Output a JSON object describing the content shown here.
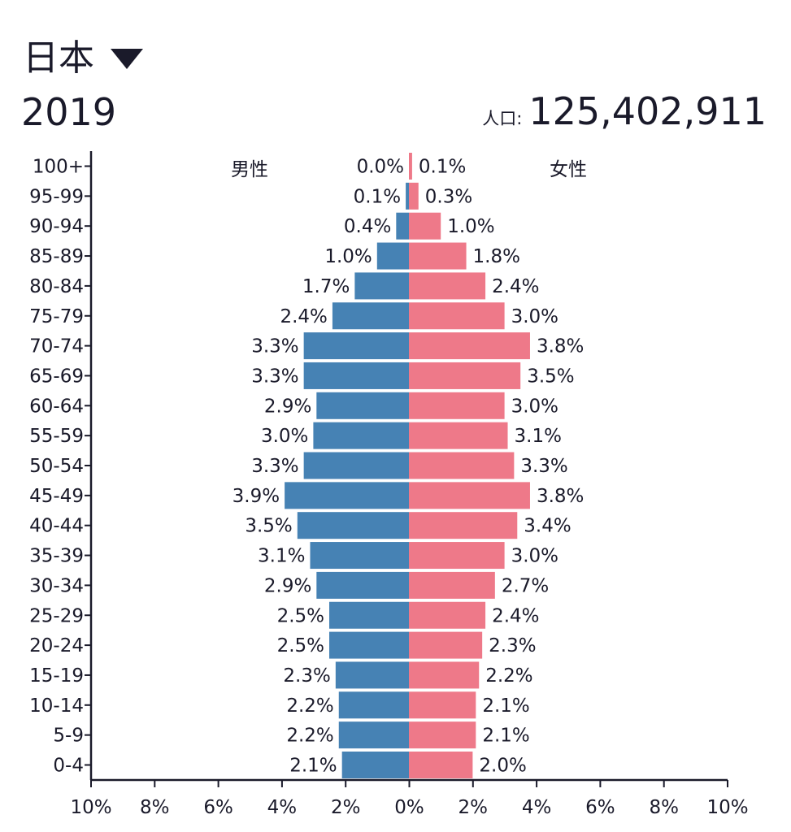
{
  "header": {
    "country": "日本",
    "year": "2019",
    "population_label": "人口:",
    "population_value": "125,402,911"
  },
  "chart_data": {
    "type": "bar",
    "subtype": "population-pyramid",
    "categories": [
      "100+",
      "95-99",
      "90-94",
      "85-89",
      "80-84",
      "75-79",
      "70-74",
      "65-69",
      "60-64",
      "55-59",
      "50-54",
      "45-49",
      "40-44",
      "35-39",
      "30-34",
      "25-29",
      "20-24",
      "15-19",
      "10-14",
      "5-9",
      "0-4"
    ],
    "series": [
      {
        "name": "男性",
        "color": "#4682b4",
        "values": [
          0.0,
          0.1,
          0.4,
          1.0,
          1.7,
          2.4,
          3.3,
          3.3,
          2.9,
          3.0,
          3.3,
          3.9,
          3.5,
          3.1,
          2.9,
          2.5,
          2.5,
          2.3,
          2.2,
          2.2,
          2.1
        ],
        "labels": [
          "0.0%",
          "0.1%",
          "0.4%",
          "1.0%",
          "1.7%",
          "2.4%",
          "3.3%",
          "3.3%",
          "2.9%",
          "3.0%",
          "3.3%",
          "3.9%",
          "3.5%",
          "3.1%",
          "2.9%",
          "2.5%",
          "2.5%",
          "2.3%",
          "2.2%",
          "2.2%",
          "2.1%"
        ]
      },
      {
        "name": "女性",
        "color": "#ee7989",
        "values": [
          0.1,
          0.3,
          1.0,
          1.8,
          2.4,
          3.0,
          3.8,
          3.5,
          3.0,
          3.1,
          3.3,
          3.8,
          3.4,
          3.0,
          2.7,
          2.4,
          2.3,
          2.2,
          2.1,
          2.1,
          2.0
        ],
        "labels": [
          "0.1%",
          "0.3%",
          "1.0%",
          "1.8%",
          "2.4%",
          "3.0%",
          "3.8%",
          "3.5%",
          "3.0%",
          "3.1%",
          "3.3%",
          "3.8%",
          "3.4%",
          "3.0%",
          "2.7%",
          "2.4%",
          "2.3%",
          "2.2%",
          "2.1%",
          "2.1%",
          "2.0%"
        ]
      }
    ],
    "x_ticks": [
      "10%",
      "8%",
      "6%",
      "4%",
      "2%",
      "0%",
      "2%",
      "4%",
      "6%",
      "8%",
      "10%"
    ],
    "xlim": [
      -10,
      10
    ]
  }
}
